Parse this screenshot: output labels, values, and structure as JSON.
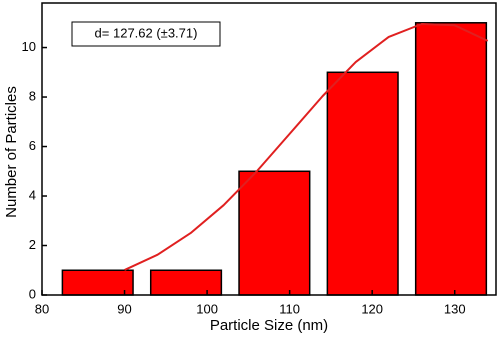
{
  "chart_data": {
    "type": "histogram",
    "xlabel": "Particle Size (nm)",
    "ylabel": "Number of  Particles",
    "annotation": "d= 127.62 (±3.71)",
    "bins": [
      81.4,
      92.1,
      102.8,
      113.5,
      124.2,
      134.9
    ],
    "counts": [
      1,
      1,
      5,
      9,
      11
    ],
    "color": "#ff0000",
    "curve": {
      "color": "#e02020",
      "x": [
        90,
        94,
        98,
        102,
        106,
        110,
        114,
        118,
        122,
        126,
        130,
        134
      ],
      "values": [
        1.01,
        1.63,
        2.5,
        3.63,
        4.99,
        6.51,
        8.04,
        9.41,
        10.43,
        10.95,
        10.9,
        10.27
      ]
    },
    "xlim": [
      80,
      135
    ],
    "ylim": [
      0,
      11.8
    ],
    "xticks": [
      80,
      90,
      100,
      110,
      120,
      130
    ],
    "yticks": [
      0,
      2,
      4,
      6,
      8,
      10
    ]
  }
}
